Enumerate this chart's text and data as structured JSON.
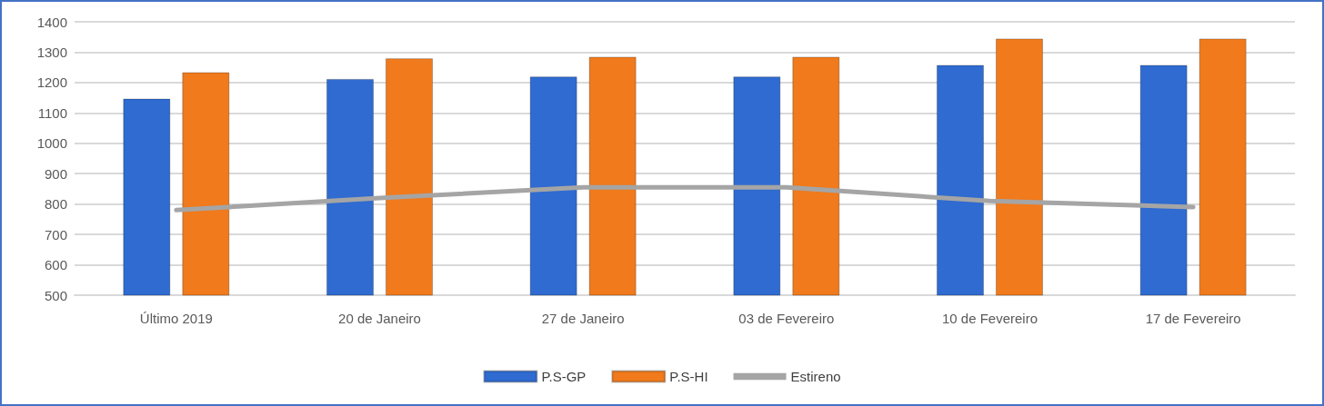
{
  "chart_data": {
    "type": "bar",
    "categories": [
      "Último 2019",
      "20 de Janeiro",
      "27 de Janeiro",
      "03 de Fevereiro",
      "10 de Fevereiro",
      "17 de Fevereiro"
    ],
    "series": [
      {
        "name": "P.S-GP",
        "color": "#2f6bd0",
        "values": [
          1147,
          1212,
          1220,
          1220,
          1258,
          1258
        ]
      },
      {
        "name": "P.S-HI",
        "color": "#f07a1c",
        "values": [
          1234,
          1280,
          1285,
          1285,
          1345,
          1345
        ]
      },
      {
        "name": "Estireno",
        "type": "line",
        "color": "#a5a5a5",
        "values": [
          780,
          820,
          855,
          855,
          810,
          790
        ]
      }
    ],
    "ylim": [
      500,
      1400
    ],
    "yticks": [
      500,
      600,
      700,
      800,
      900,
      1000,
      1100,
      1200,
      1300,
      1400
    ],
    "grid": "y",
    "legend": "bottom",
    "marker": "none"
  }
}
